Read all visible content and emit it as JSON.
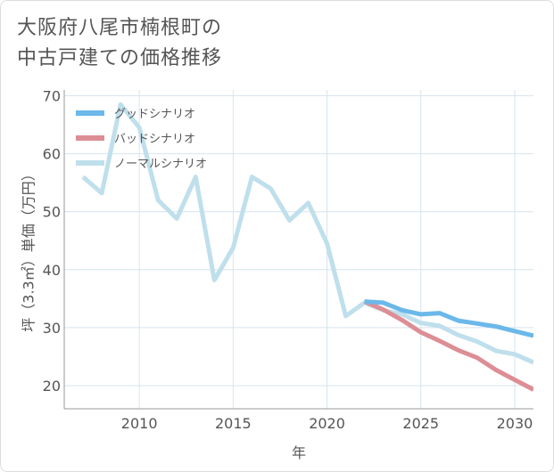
{
  "title": {
    "line1": "大阪府八尾市楠根町の",
    "line2": "中古戸建ての価格推移"
  },
  "chart_data": {
    "type": "line",
    "title": "大阪府八尾市楠根町の中古戸建ての価格推移",
    "xlabel": "年",
    "ylabel": "坪（3.3㎡）単価（万円）",
    "xlim": [
      2006,
      2031
    ],
    "ylim": [
      16,
      71
    ],
    "x_ticks": [
      2010,
      2015,
      2020,
      2025,
      2030
    ],
    "y_ticks": [
      20,
      30,
      40,
      50,
      60,
      70
    ],
    "grid": true,
    "legend_position": "top-left",
    "series": [
      {
        "name": "グッドシナリオ",
        "color": "#6bb8ea",
        "x": [
          2022,
          2023,
          2024,
          2025,
          2026,
          2027,
          2028,
          2029,
          2030,
          2031
        ],
        "y": [
          34.5,
          34.3,
          33.0,
          32.3,
          32.5,
          31.2,
          30.7,
          30.2,
          29.4,
          28.6
        ]
      },
      {
        "name": "バッドシナリオ",
        "color": "#dd8e95",
        "x": [
          2022,
          2023,
          2024,
          2025,
          2026,
          2027,
          2028,
          2029,
          2030,
          2031
        ],
        "y": [
          34.5,
          33.1,
          31.3,
          29.2,
          27.7,
          26.1,
          24.8,
          22.7,
          21.0,
          19.3
        ]
      },
      {
        "name": "ノーマルシナリオ",
        "color": "#bfdfec",
        "x": [
          2007,
          2008,
          2009,
          2010,
          2011,
          2012,
          2013,
          2014,
          2015,
          2016,
          2017,
          2018,
          2019,
          2020,
          2021,
          2022,
          2023,
          2024,
          2025,
          2026,
          2027,
          2028,
          2029,
          2030,
          2031
        ],
        "y": [
          56.0,
          53.2,
          68.5,
          64.5,
          52.0,
          48.8,
          56.0,
          38.2,
          43.8,
          56.0,
          54.0,
          48.5,
          51.5,
          44.5,
          32.0,
          34.3,
          33.0,
          32.3,
          30.8,
          30.3,
          28.7,
          27.6,
          26.0,
          25.4,
          24.0
        ]
      }
    ]
  }
}
